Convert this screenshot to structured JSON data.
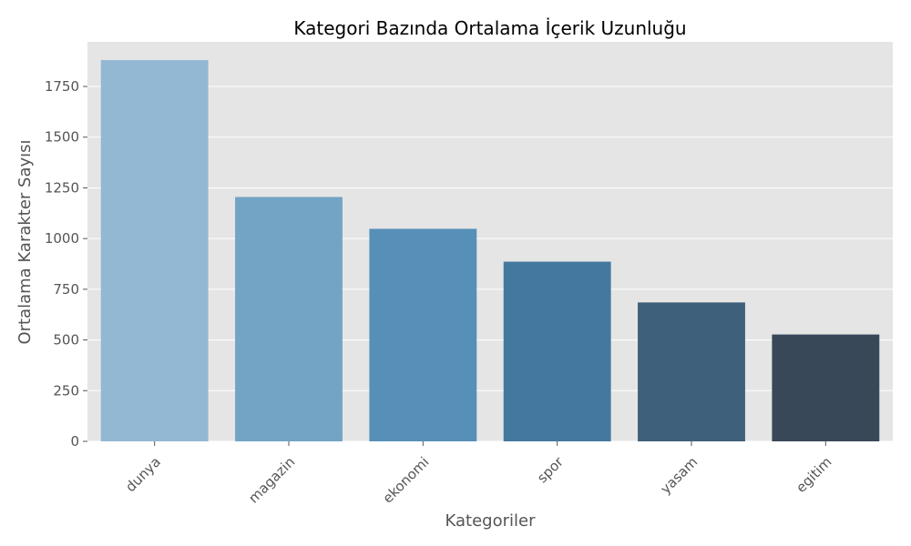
{
  "chart_data": {
    "type": "bar",
    "title": "Kategori Bazında Ortalama İçerik Uzunluğu",
    "xlabel": "Kategoriler",
    "ylabel": "Ortalama Karakter Sayısı",
    "categories": [
      "dunya",
      "magazin",
      "ekonomi",
      "spor",
      "yasam",
      "egitim"
    ],
    "values": [
      1880,
      1205,
      1048,
      886,
      685,
      527
    ],
    "colors": [
      "#93b8d3",
      "#73a4c5",
      "#568fb8",
      "#44789f",
      "#3e607a",
      "#384859"
    ],
    "yticks": [
      0,
      250,
      500,
      750,
      1000,
      1250,
      1500,
      1750
    ],
    "ylim": [
      0,
      1970
    ],
    "grid": true,
    "background": "#e5e5e5"
  }
}
